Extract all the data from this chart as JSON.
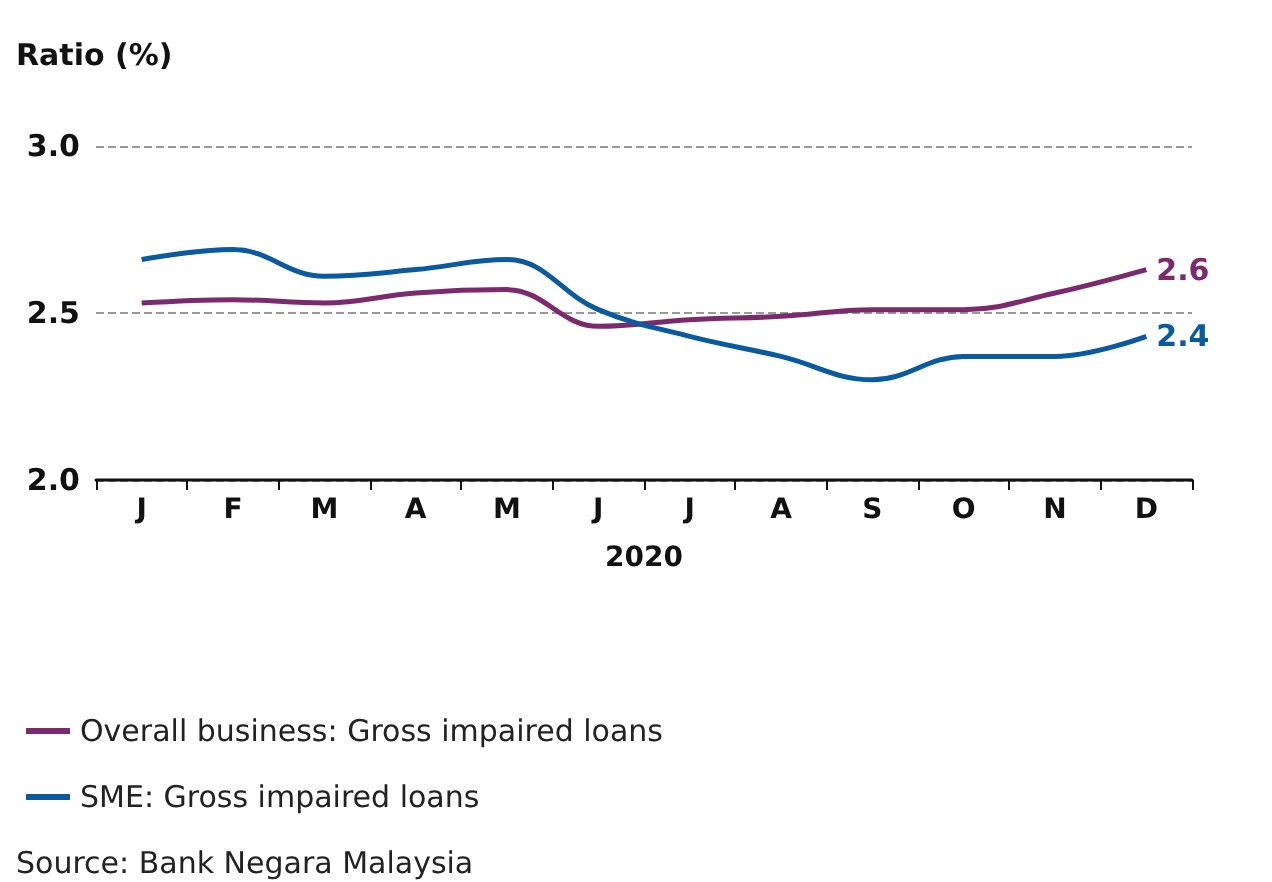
{
  "chart_data": {
    "type": "line",
    "ylabel": "Ratio (%)",
    "xlabel": "2020",
    "categories": [
      "J",
      "F",
      "M",
      "A",
      "M",
      "J",
      "J",
      "A",
      "S",
      "O",
      "N",
      "D"
    ],
    "series": [
      {
        "name": "Overall business: Gross impaired loans",
        "color": "#7b2a6e",
        "values": [
          2.53,
          2.54,
          2.53,
          2.56,
          2.57,
          2.46,
          2.48,
          2.49,
          2.51,
          2.51,
          2.56,
          2.63
        ],
        "value_labels": [
          null,
          null,
          null,
          null,
          null,
          null,
          null,
          null,
          null,
          null,
          null,
          "2.6"
        ]
      },
      {
        "name": "SME: Gross impaired loans",
        "color": "#0a5aa0",
        "values": [
          2.66,
          2.69,
          2.61,
          2.63,
          2.66,
          2.51,
          2.43,
          2.37,
          2.3,
          2.37,
          2.37,
          2.43
        ],
        "value_labels": [
          null,
          null,
          null,
          null,
          null,
          null,
          null,
          null,
          null,
          null,
          null,
          "2.4"
        ]
      }
    ],
    "ylim": [
      2.0,
      3.0
    ],
    "yticks": [
      {
        "value": 2.0,
        "label": "2.0"
      },
      {
        "value": 2.5,
        "label": "2.5"
      },
      {
        "value": 3.0,
        "label": "3.0"
      }
    ],
    "grid": "y",
    "legend": "bottom",
    "marker": "none",
    "line_style": "solid",
    "annotations": [
      "Source: Bank Negara Malaysia"
    ]
  }
}
